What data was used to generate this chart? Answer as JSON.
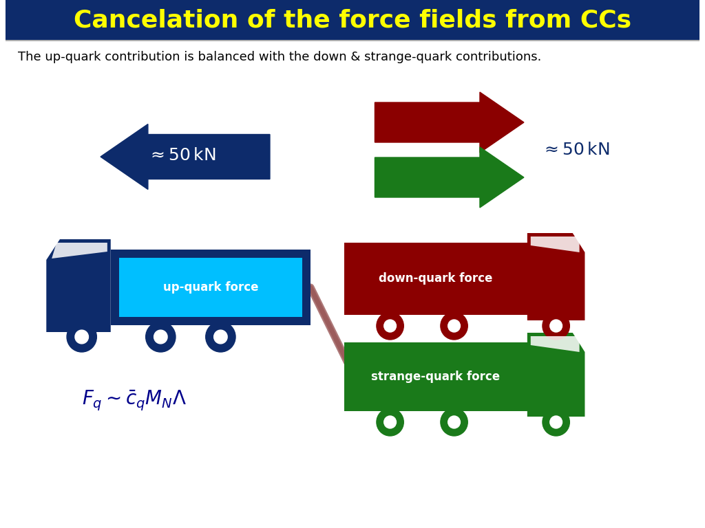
{
  "title": "Cancelation of the force fields from CCs",
  "title_color": "#FFFF00",
  "title_bg": "#0D2B6B",
  "subtitle": "The up-quark contribution is balanced with the down & strange-quark contributions.",
  "subtitle_color": "#000000",
  "color_blue": "#0D2B6B",
  "color_red": "#8B0000",
  "color_green": "#1A7A1A",
  "color_cyan": "#00BFFF",
  "color_light_green": "#7FCC7F",
  "formula_color": "#00008B",
  "blue_arrow_label_color": "#FFFFFF",
  "right_arrow_label_color": "#00008B",
  "fig_w": 10.24,
  "fig_h": 7.68,
  "title_fontsize": 26,
  "subtitle_fontsize": 13,
  "arrow_fontsize": 18,
  "label_fontsize": 12,
  "formula_fontsize": 20
}
